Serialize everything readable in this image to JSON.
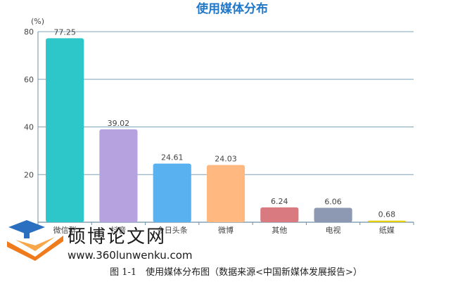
{
  "chart_data": {
    "type": "bar",
    "title": "使用媒体分布",
    "yunit": "(%)",
    "ylim": [
      0,
      80
    ],
    "yticks": [
      20,
      40,
      60,
      80
    ],
    "grid": true,
    "categories": [
      "微信群",
      "抖音",
      "今日头条",
      "微博",
      "其他",
      "电视",
      "纸媒"
    ],
    "values": [
      77.25,
      39.02,
      24.61,
      24.03,
      6.24,
      6.06,
      0.68
    ],
    "value_labels": [
      "77.25",
      "39.02",
      "24.61",
      "24.03",
      "6.24",
      "6.06",
      "0.68"
    ],
    "colors": [
      "#2ec7c9",
      "#b6a2de",
      "#5ab1ef",
      "#ffb980",
      "#d87a80",
      "#8d98b3",
      "#e5cf0d"
    ],
    "title_color": "#1f77c9",
    "axis_color": "#6d8ea8",
    "grid_color": "#7fa3b8"
  },
  "watermark": {
    "title": "硕博论文网",
    "url": "www.360lunwenku.com"
  },
  "caption": "图 1-1　使用媒体分布图（数据来源<中国新媒体发展报告>）"
}
